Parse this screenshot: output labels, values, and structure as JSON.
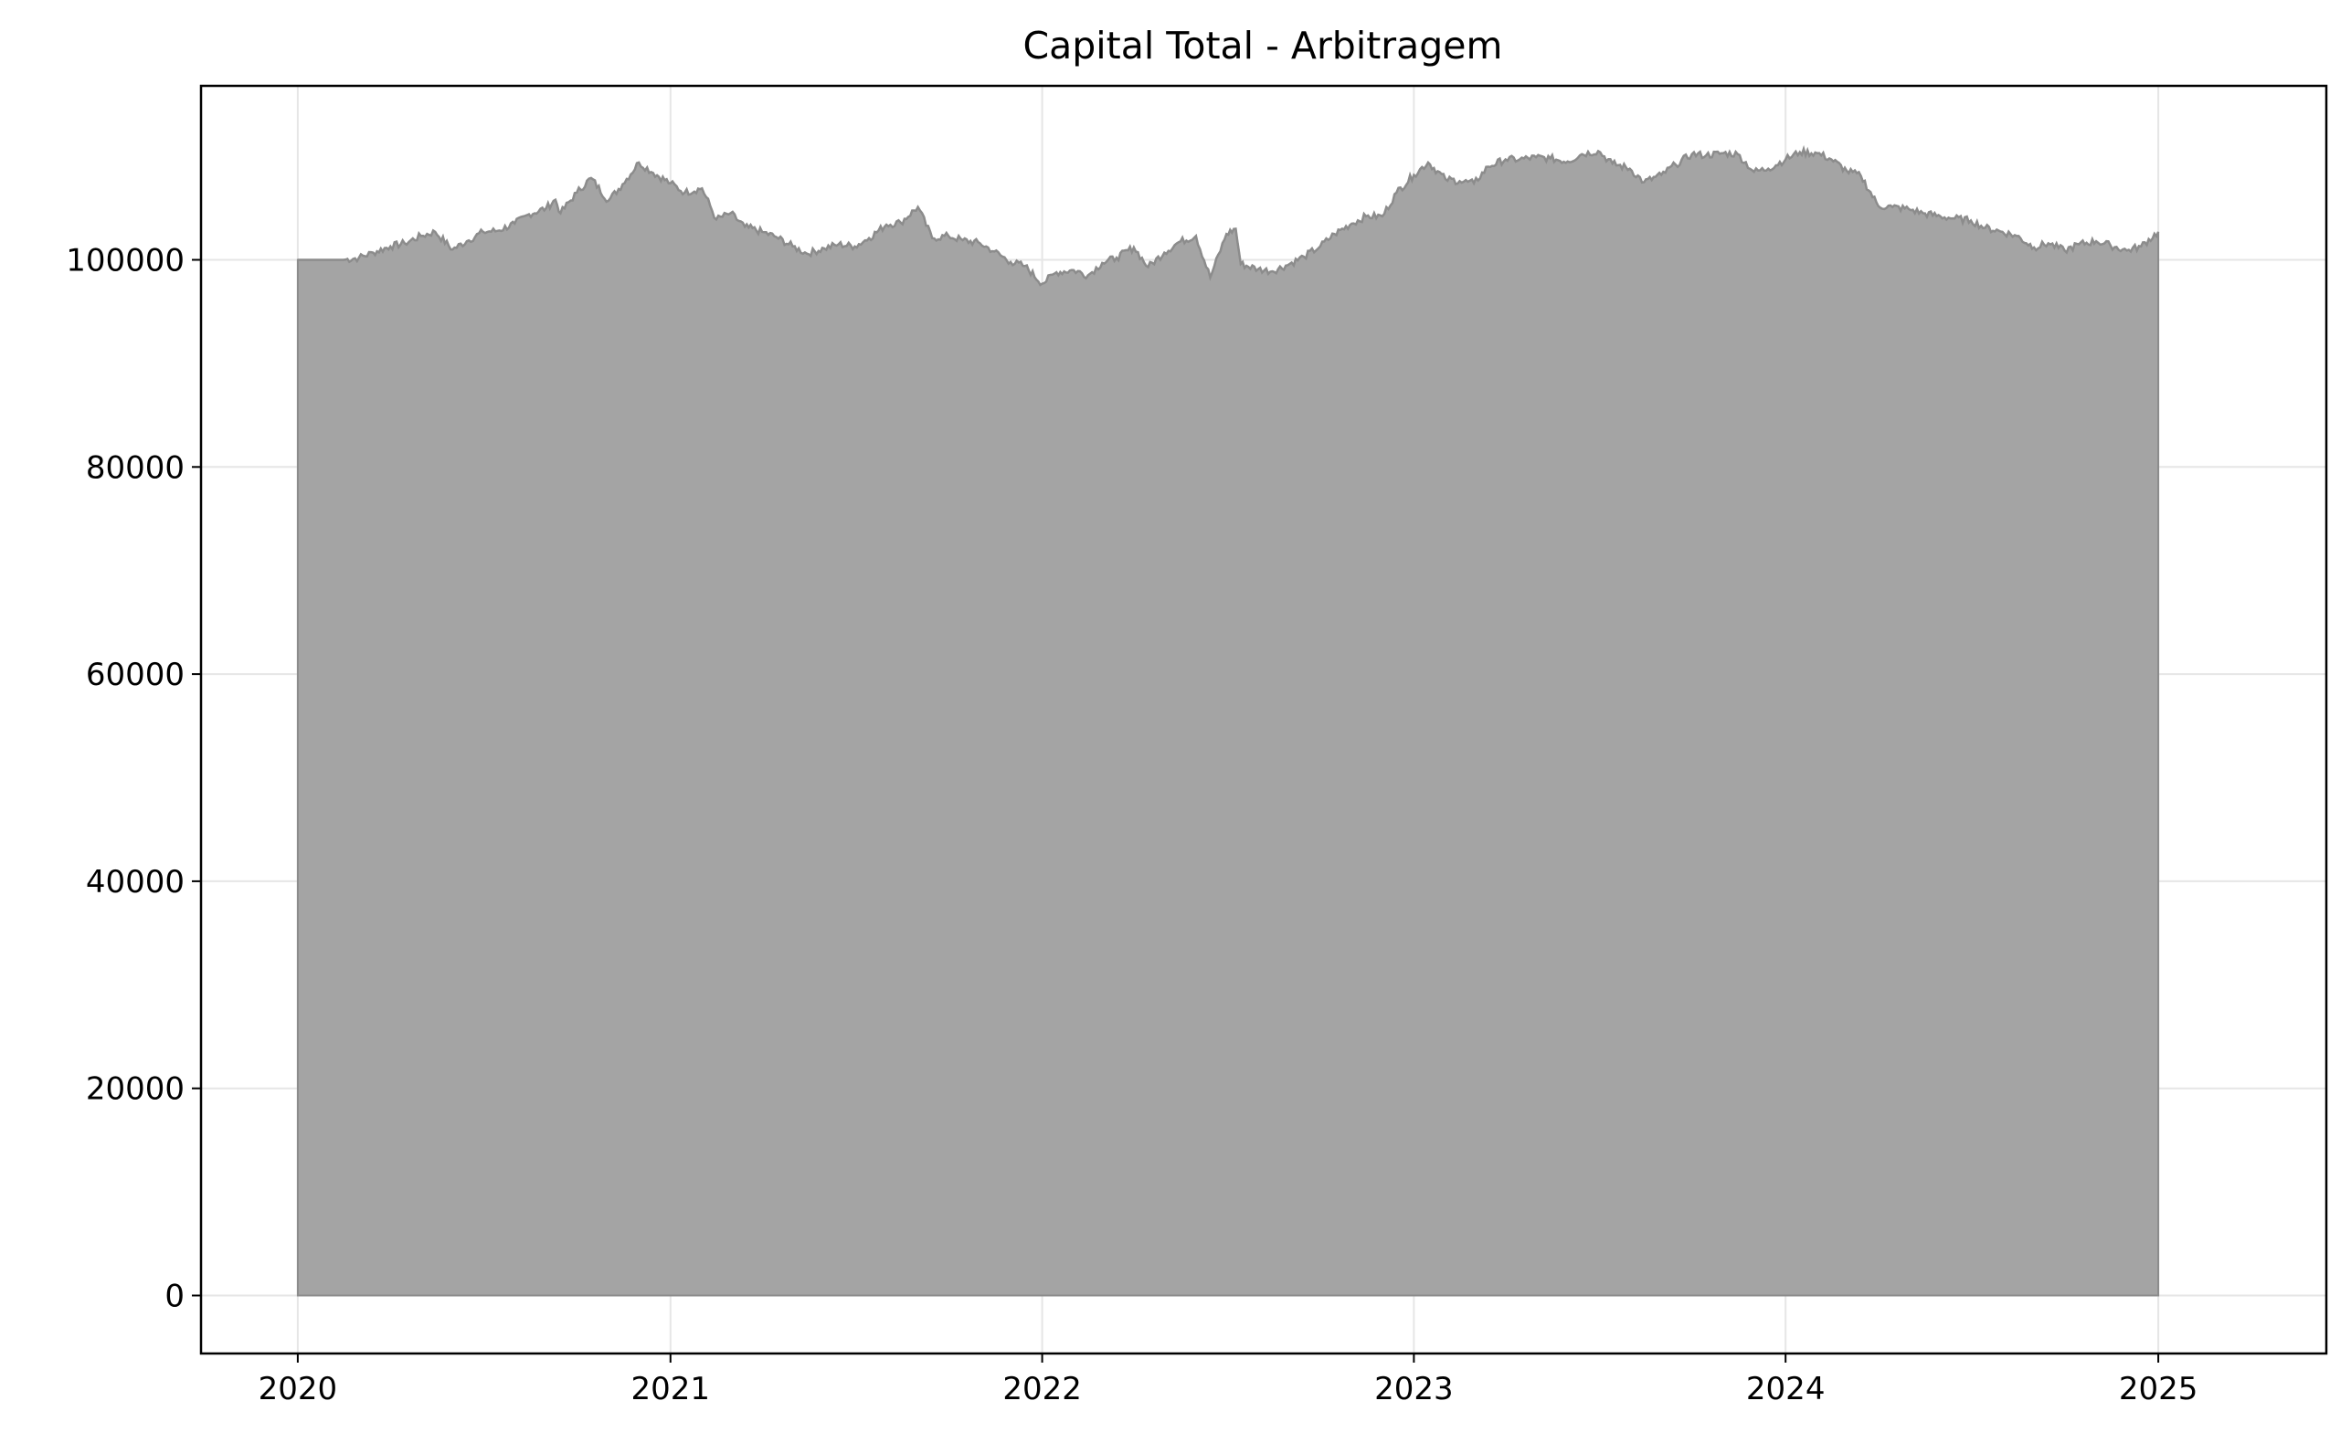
{
  "chart_data": {
    "type": "area",
    "title": "Capital Total - Arbitragem",
    "xlabel": "",
    "ylabel": "",
    "xlim": [
      "2019-09-28",
      "2025-06-15"
    ],
    "ylim": [
      -5600,
      116800
    ],
    "x_ticks": [
      "2020",
      "2021",
      "2022",
      "2023",
      "2024",
      "2025"
    ],
    "y_ticks": [
      0,
      20000,
      40000,
      60000,
      80000,
      100000
    ],
    "grid": true,
    "legend": "none",
    "colors": {
      "fill": "#a4a4a4",
      "line": "#8c8c8c",
      "grid": "#e6e6e6"
    },
    "series": [
      {
        "x": [
          "2020-01-01",
          "2020-02-15",
          "2020-03-01",
          "2020-03-15",
          "2020-04-01",
          "2020-04-15",
          "2020-05-01",
          "2020-05-15",
          "2020-06-01",
          "2020-06-15",
          "2020-07-01",
          "2020-07-15",
          "2020-08-01",
          "2020-08-15",
          "2020-09-01",
          "2020-09-10",
          "2020-09-15",
          "2020-10-01",
          "2020-10-15",
          "2020-11-01",
          "2020-11-15",
          "2020-12-01",
          "2020-12-15",
          "2021-01-01",
          "2021-01-15",
          "2021-02-01",
          "2021-02-15",
          "2021-03-01",
          "2021-03-15",
          "2021-04-01",
          "2021-04-15",
          "2021-05-01",
          "2021-05-15",
          "2021-06-01",
          "2021-06-15",
          "2021-07-01",
          "2021-07-15",
          "2021-08-01",
          "2021-08-15",
          "2021-09-01",
          "2021-09-15",
          "2021-10-01",
          "2021-10-15",
          "2021-11-01",
          "2021-11-15",
          "2021-12-01",
          "2021-12-15",
          "2022-01-01",
          "2022-01-15",
          "2022-02-01",
          "2022-02-15",
          "2022-03-01",
          "2022-03-15",
          "2022-04-01",
          "2022-04-15",
          "2022-05-01",
          "2022-05-15",
          "2022-06-01",
          "2022-06-15",
          "2022-07-01",
          "2022-07-10",
          "2022-07-15",
          "2022-08-01",
          "2022-08-15",
          "2022-09-01",
          "2022-09-15",
          "2022-10-01",
          "2022-10-15",
          "2022-11-01",
          "2022-11-15",
          "2022-12-01",
          "2022-12-15",
          "2023-01-01",
          "2023-01-15",
          "2023-02-01",
          "2023-02-15",
          "2023-03-01",
          "2023-03-15",
          "2023-04-01",
          "2023-04-15",
          "2023-05-01",
          "2023-05-15",
          "2023-06-01",
          "2023-06-15",
          "2023-07-01",
          "2023-07-15",
          "2023-08-01",
          "2023-08-15",
          "2023-09-01",
          "2023-09-15",
          "2023-10-01",
          "2023-10-15",
          "2023-11-01",
          "2023-11-15",
          "2023-12-01",
          "2023-12-15",
          "2024-01-01",
          "2024-01-15",
          "2024-02-01",
          "2024-02-15",
          "2024-03-01",
          "2024-03-15",
          "2024-04-01",
          "2024-04-15",
          "2024-05-01",
          "2024-05-15",
          "2024-06-01",
          "2024-06-15",
          "2024-07-01",
          "2024-07-15",
          "2024-08-01",
          "2024-08-15",
          "2024-09-01",
          "2024-09-15",
          "2024-10-01",
          "2024-10-15",
          "2024-11-01",
          "2024-11-15",
          "2024-12-01",
          "2024-12-15",
          "2025-01-01"
        ],
        "values": [
          100000,
          100000,
          100200,
          100700,
          101300,
          101600,
          102300,
          102700,
          101000,
          101800,
          102700,
          102800,
          103500,
          104400,
          105000,
          105800,
          104500,
          106500,
          107900,
          105700,
          107300,
          109400,
          108400,
          107400,
          106500,
          106900,
          103900,
          104500,
          103200,
          102700,
          102200,
          101300,
          100600,
          101100,
          101500,
          101300,
          102100,
          103400,
          103600,
          105100,
          102100,
          102300,
          101900,
          101600,
          100800,
          99800,
          99400,
          97700,
          98800,
          99000,
          98500,
          99700,
          100200,
          101200,
          99300,
          100700,
          101700,
          102300,
          98300,
          102500,
          103000,
          99600,
          99100,
          98900,
          99600,
          100300,
          101300,
          102500,
          103500,
          104200,
          104200,
          106500,
          108200,
          109400,
          107800,
          107600,
          107400,
          109000,
          109700,
          109700,
          109900,
          109800,
          109500,
          110200,
          110500,
          109300,
          108800,
          107500,
          108200,
          109200,
          110200,
          110100,
          110300,
          110200,
          108500,
          108800,
          109700,
          110400,
          110300,
          109700,
          108600,
          108100,
          105200,
          105100,
          104900,
          104500,
          104200,
          104000,
          103800,
          103100,
          102700,
          102300,
          101200,
          101600,
          100900,
          101500,
          101800,
          101400,
          100900,
          101300,
          102700
        ]
      }
    ]
  }
}
